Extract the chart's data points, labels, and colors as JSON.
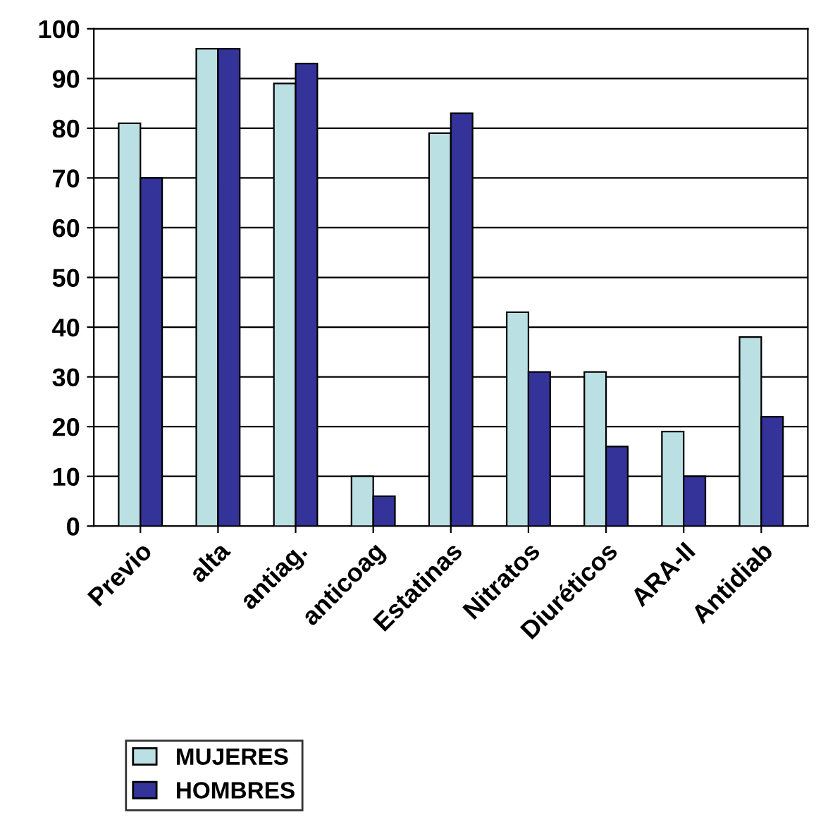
{
  "chart_data": {
    "type": "bar",
    "categories": [
      "Previo",
      "alta",
      "antiag.",
      "anticoag",
      "Estatinas",
      "Nitratos",
      "Diuréticos",
      "ARA-II",
      "Antidiab"
    ],
    "series": [
      {
        "name": "MUJERES",
        "color": "#bbe0e3",
        "values": [
          81,
          96,
          89,
          10,
          79,
          43,
          31,
          19,
          38
        ]
      },
      {
        "name": "HOMBRES",
        "color": "#333399",
        "values": [
          70,
          96,
          93,
          6,
          83,
          31,
          16,
          10,
          22
        ]
      }
    ],
    "ylim": [
      0,
      100
    ],
    "yticks": [
      0,
      10,
      20,
      30,
      40,
      50,
      60,
      70,
      80,
      90,
      100
    ],
    "grid": "y",
    "legend": "bottom left"
  }
}
